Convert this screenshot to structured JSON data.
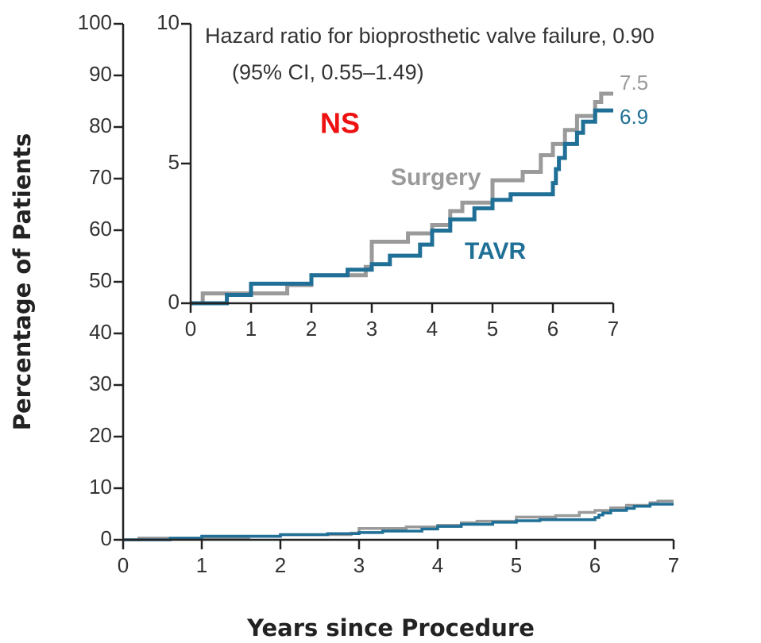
{
  "chart_data": [
    {
      "type": "line",
      "step": true,
      "x_label": "Years since Procedure",
      "y_label": "Percentage of Patients",
      "xlim": [
        0,
        7
      ],
      "xticks": [
        0,
        1,
        2,
        3,
        4,
        5,
        6,
        7
      ],
      "ylim": [
        0,
        100
      ],
      "yticks": [
        0,
        10,
        20,
        30,
        40,
        50,
        60,
        70,
        80,
        90,
        100
      ],
      "series": [
        {
          "name": "Surgery",
          "color": "#9a9a9a",
          "x": [
            0,
            0.2,
            1.6,
            2.0,
            2.9,
            3.0,
            3.6,
            4.0,
            4.3,
            4.5,
            5.0,
            5.5,
            5.8,
            6.0,
            6.2,
            6.4,
            6.7,
            6.8,
            7.0
          ],
          "values": [
            0,
            0.35,
            0.65,
            1.0,
            1.3,
            2.2,
            2.5,
            2.8,
            3.3,
            3.6,
            4.4,
            4.7,
            5.3,
            5.7,
            6.2,
            6.7,
            7.2,
            7.5,
            7.5
          ]
        },
        {
          "name": "TAVR",
          "color": "#1f6f96",
          "x": [
            0,
            0.6,
            1.0,
            2.0,
            2.6,
            3.0,
            3.3,
            3.8,
            4.0,
            4.3,
            4.7,
            5.0,
            5.3,
            6.0,
            6.05,
            6.1,
            6.2,
            6.4,
            6.5,
            6.7,
            7.0
          ],
          "values": [
            0,
            0.3,
            0.7,
            1.0,
            1.2,
            1.4,
            1.7,
            2.1,
            2.6,
            3.0,
            3.4,
            3.7,
            3.9,
            4.3,
            4.8,
            5.2,
            5.7,
            6.1,
            6.5,
            6.9,
            6.9
          ]
        }
      ]
    },
    {
      "type": "line",
      "step": true,
      "annotations": [
        "Hazard ratio for bioprosthetic valve failure, 0.90",
        "(95% CI, 0.55–1.49)",
        "NS"
      ],
      "xlim": [
        0,
        7
      ],
      "xticks": [
        0,
        1,
        2,
        3,
        4,
        5,
        6,
        7
      ],
      "ylim": [
        0,
        10
      ],
      "yticks": [
        0,
        5,
        10
      ],
      "series": [
        {
          "name": "Surgery",
          "color": "#9a9a9a",
          "x": [
            0,
            0.2,
            1.6,
            2.0,
            2.9,
            3.0,
            3.6,
            4.0,
            4.3,
            4.5,
            5.0,
            5.5,
            5.8,
            6.0,
            6.2,
            6.4,
            6.7,
            6.8,
            7.0
          ],
          "values": [
            0,
            0.35,
            0.65,
            1.0,
            1.3,
            2.2,
            2.5,
            2.8,
            3.3,
            3.6,
            4.4,
            4.7,
            5.3,
            5.7,
            6.2,
            6.7,
            7.2,
            7.5,
            7.5
          ]
        },
        {
          "name": "TAVR",
          "color": "#1f6f96",
          "x": [
            0,
            0.6,
            1.0,
            2.0,
            2.6,
            3.0,
            3.3,
            3.8,
            4.0,
            4.3,
            4.7,
            5.0,
            5.3,
            6.0,
            6.05,
            6.1,
            6.2,
            6.4,
            6.5,
            6.7,
            7.0
          ],
          "values": [
            0,
            0.3,
            0.7,
            1.0,
            1.2,
            1.4,
            1.7,
            2.1,
            2.6,
            3.0,
            3.4,
            3.7,
            3.9,
            4.3,
            4.8,
            5.2,
            5.7,
            6.1,
            6.5,
            6.9,
            6.9
          ]
        }
      ]
    }
  ]
}
